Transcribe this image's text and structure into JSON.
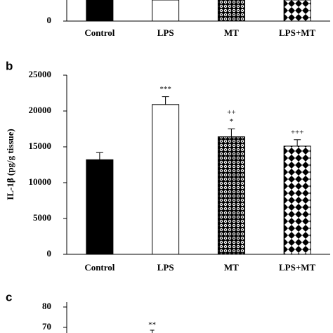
{
  "chart_data": [
    {
      "type": "bar",
      "categories": [
        "Control",
        "LPS",
        "MT",
        "LPS+MT"
      ],
      "yticks": [
        0
      ]
    },
    {
      "type": "bar",
      "panel": "b",
      "y_label": "IL-1β (pg/g tissue)",
      "categories": [
        "Control",
        "LPS",
        "MT",
        "LPS+MT"
      ],
      "values": [
        13200,
        20900,
        16400,
        15100
      ],
      "errors": [
        1000,
        1100,
        1100,
        900
      ],
      "annotations": [
        null,
        [
          "***"
        ],
        [
          "++",
          "*"
        ],
        [
          "+++"
        ]
      ],
      "ylim": [
        0,
        25000
      ],
      "yticks": [
        0,
        5000,
        10000,
        15000,
        20000,
        25000
      ]
    },
    {
      "type": "bar",
      "panel": "c",
      "yticks": [
        70,
        80
      ],
      "annotations": [
        null,
        [
          "**"
        ]
      ]
    }
  ]
}
